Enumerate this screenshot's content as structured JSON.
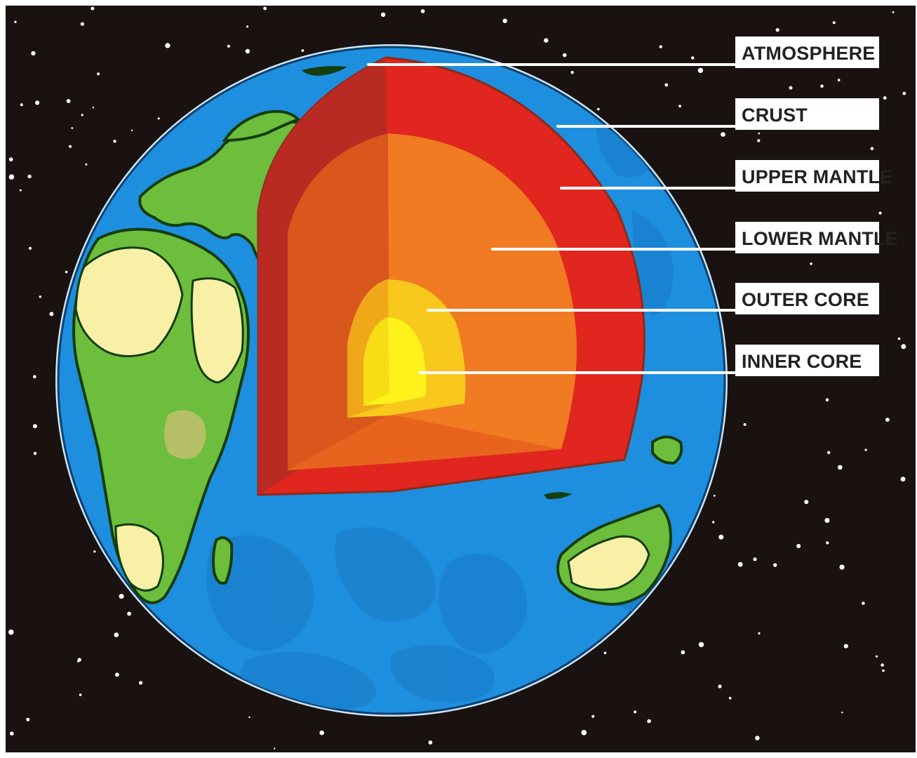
{
  "diagram": {
    "labels": [
      {
        "id": "atmosphere",
        "text": "ATMOSPHERE"
      },
      {
        "id": "crust",
        "text": "CRUST"
      },
      {
        "id": "upper-mantle",
        "text": "UPPER MANTLE"
      },
      {
        "id": "lower-mantle",
        "text": "LOWER MANTLE"
      },
      {
        "id": "outer-core",
        "text": "OUTER CORE"
      },
      {
        "id": "inner-core",
        "text": "INNER CORE"
      }
    ],
    "colors": {
      "space": "#1a1210",
      "star": "#ffffff",
      "ocean": "#1e8fde",
      "ocean_dark": "#1877c4",
      "land_green": "#6cbe3c",
      "land_sand": "#f7f0a6",
      "crust": "#e0261e",
      "crust_shade": "#b92a22",
      "upper_mantle": "#f07b22",
      "upper_mantle_shade": "#d9561c",
      "outer_core": "#f8c81c",
      "outer_core_shade": "#f0a81a",
      "inner_core": "#fff21a",
      "label_bg": "#ffffff",
      "label_text": "#222222"
    }
  }
}
